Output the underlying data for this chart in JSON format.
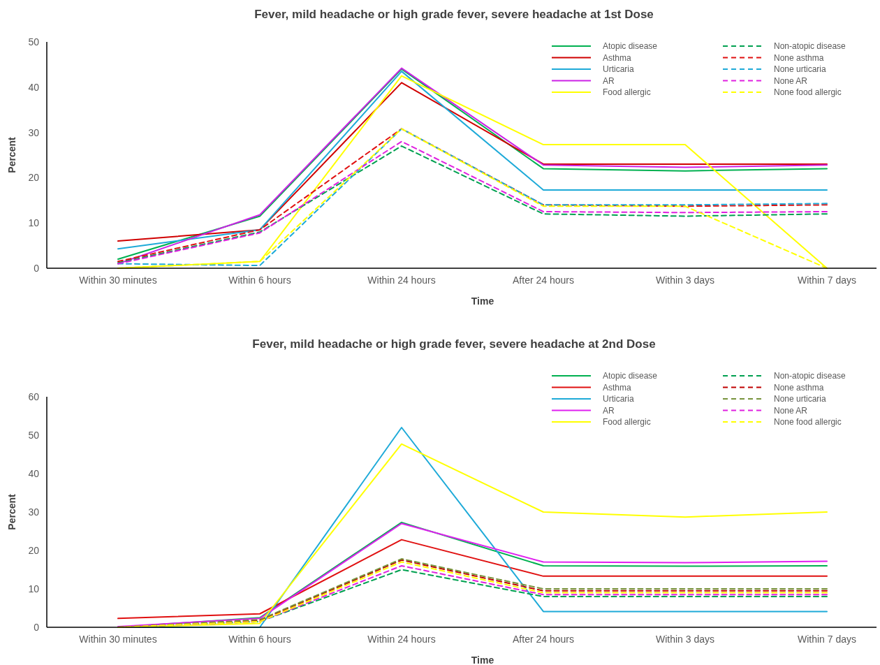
{
  "chart_data": [
    {
      "type": "line",
      "title": "Fever, mild headache or high grade fever, severe headache at 1st Dose",
      "xlabel": "Time",
      "ylabel": "Percent",
      "categories": [
        "Within 30 minutes",
        "Within 6 hours",
        "Within 24 hours",
        "After 24 hours",
        "Within 3 days",
        "Within 7 days"
      ],
      "ylim": [
        0,
        50
      ],
      "yticks": [
        0,
        10,
        20,
        30,
        40,
        50
      ],
      "grid": false,
      "legend": "top right",
      "marker": "none",
      "series": [
        {
          "name": "Atopic disease",
          "color": "#00b050",
          "line_style": "solid",
          "values": [
            2,
            11.5,
            44,
            22,
            21.5,
            22
          ]
        },
        {
          "name": "Asthma",
          "color": "#d00000",
          "line_style": "solid",
          "values": [
            6,
            8.5,
            41,
            23,
            23,
            23
          ]
        },
        {
          "name": "Urticaria",
          "color": "#1eaad8",
          "line_style": "solid",
          "values": [
            4.3,
            8.5,
            43.5,
            17.3,
            17.3,
            17.3
          ]
        },
        {
          "name": "AR",
          "color": "#cc22e6",
          "line_style": "solid",
          "values": [
            1,
            11.8,
            44.2,
            22.8,
            22.3,
            22.8
          ]
        },
        {
          "name": "Food allergic",
          "color": "#ffff00",
          "line_style": "solid",
          "values": [
            0,
            1.5,
            42.5,
            27.3,
            27.3,
            0
          ]
        },
        {
          "name": "Non-atopic disease",
          "color": "#00a050",
          "line_style": "dashed",
          "values": [
            1.2,
            8,
            27,
            12,
            11.5,
            12
          ]
        },
        {
          "name": "None asthma",
          "color": "#e01010",
          "line_style": "dashed",
          "values": [
            1.5,
            8.5,
            30.8,
            14,
            13.7,
            14
          ]
        },
        {
          "name": "None urticaria",
          "color": "#1eaad8",
          "line_style": "dashed",
          "values": [
            1,
            0.6,
            30.8,
            14,
            14,
            14.3
          ]
        },
        {
          "name": "None AR",
          "color": "#e020e0",
          "line_style": "dashed",
          "values": [
            1,
            7.8,
            28,
            12.5,
            12.3,
            12.5
          ]
        },
        {
          "name": "None food allergic",
          "color": "#ffff00",
          "line_style": "dashed",
          "values": [
            0,
            1.5,
            30.8,
            13.7,
            13.7,
            0
          ]
        }
      ]
    },
    {
      "type": "line",
      "title": "Fever, mild headache or high grade fever, severe headache at 2nd Dose",
      "xlabel": "Time",
      "ylabel": "Percent",
      "categories": [
        "Within 30 minutes",
        "Within 6 hours",
        "Within 24 hours",
        "After 24 hours",
        "Within 3 days",
        "Within 7 days"
      ],
      "ylim": [
        0,
        60
      ],
      "yticks": [
        0,
        10,
        20,
        30,
        40,
        50,
        60
      ],
      "grid": false,
      "legend": "top right",
      "marker": "none",
      "series": [
        {
          "name": "Atopic disease",
          "color": "#00b050",
          "line_style": "solid",
          "values": [
            0,
            2.5,
            27.3,
            16,
            15.9,
            16
          ]
        },
        {
          "name": "Asthma",
          "color": "#e01010",
          "line_style": "solid",
          "values": [
            2.3,
            3.5,
            22.8,
            13.3,
            13.3,
            13.3
          ]
        },
        {
          "name": "Urticaria",
          "color": "#1eaad8",
          "line_style": "solid",
          "values": [
            0,
            0,
            52,
            4.1,
            4.1,
            4.1
          ]
        },
        {
          "name": "AR",
          "color": "#e020f0",
          "line_style": "solid",
          "values": [
            0.2,
            2.3,
            27,
            17,
            16.8,
            17.2
          ]
        },
        {
          "name": "Food allergic",
          "color": "#ffff00",
          "line_style": "solid",
          "values": [
            0,
            1,
            47.7,
            30,
            28.7,
            30
          ]
        },
        {
          "name": "Non-atopic disease",
          "color": "#00a050",
          "line_style": "dashed",
          "values": [
            0,
            1.5,
            15,
            8,
            8,
            8
          ]
        },
        {
          "name": "None asthma",
          "color": "#c00000",
          "line_style": "dashed",
          "values": [
            0,
            1.8,
            17.5,
            9.5,
            9.5,
            9.5
          ]
        },
        {
          "name": "None urticaria",
          "color": "#77933c",
          "line_style": "dashed",
          "values": [
            0,
            2,
            17.8,
            10,
            10,
            10
          ]
        },
        {
          "name": "None AR",
          "color": "#e020e0",
          "line_style": "dashed",
          "values": [
            0,
            1.5,
            16,
            8.5,
            8.5,
            8.5
          ]
        },
        {
          "name": "None food allergic",
          "color": "#ffff00",
          "line_style": "dashed",
          "values": [
            0,
            1.5,
            17,
            9,
            9,
            9
          ]
        }
      ]
    }
  ]
}
